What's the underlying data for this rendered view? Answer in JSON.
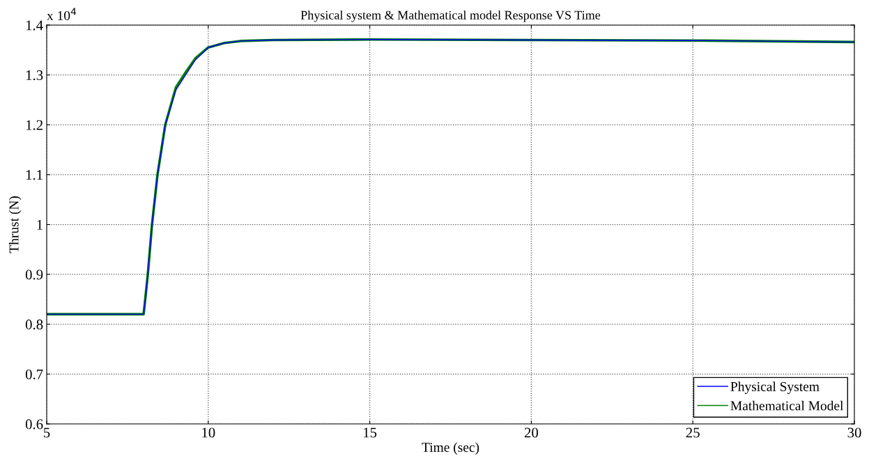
{
  "chart_data": {
    "type": "line",
    "title": "Physical system & Mathematical model Response VS Time",
    "xlabel": "Time (sec)",
    "ylabel": "Thrust (N)",
    "annotations": [
      "x 10$^{4}$"
    ],
    "xlim": [
      5,
      30
    ],
    "xticks": [
      5,
      10,
      15,
      20,
      25,
      30
    ],
    "ylim": [
      0.6,
      1.4
    ],
    "yticks": [
      0.6,
      0.7,
      0.8,
      0.9,
      1,
      1.1,
      1.2,
      1.3,
      1.4
    ],
    "grid": true,
    "legend": "bottom right",
    "line_style": "solid",
    "marker": "none",
    "series": [
      {
        "name": "Mathematical Model",
        "color": "#008000",
        "x": [
          5,
          8,
          8.05,
          8.13,
          8.26,
          8.43,
          8.67,
          9,
          9.3,
          9.6,
          10,
          10.5,
          11,
          12,
          15,
          20,
          25,
          30
        ],
        "values": [
          0.82,
          0.82,
          0.85,
          0.9,
          1,
          1.1,
          1.2,
          1.275,
          1.305,
          1.333,
          1.355,
          1.364,
          1.368,
          1.37,
          1.371,
          1.37,
          1.369,
          1.366
        ]
      },
      {
        "name": "Physical System",
        "color": "#0000ff",
        "x": [
          5,
          8,
          8.05,
          8.13,
          8.26,
          8.43,
          8.67,
          9,
          9.3,
          9.6,
          10,
          10.5,
          11,
          12,
          15,
          20,
          25,
          30
        ],
        "values": [
          0.82,
          0.82,
          0.85,
          0.9,
          1,
          1.1,
          1.2,
          1.27,
          1.3,
          1.33,
          1.355,
          1.364,
          1.368,
          1.37,
          1.371,
          1.37,
          1.369,
          1.366
        ]
      }
    ]
  }
}
